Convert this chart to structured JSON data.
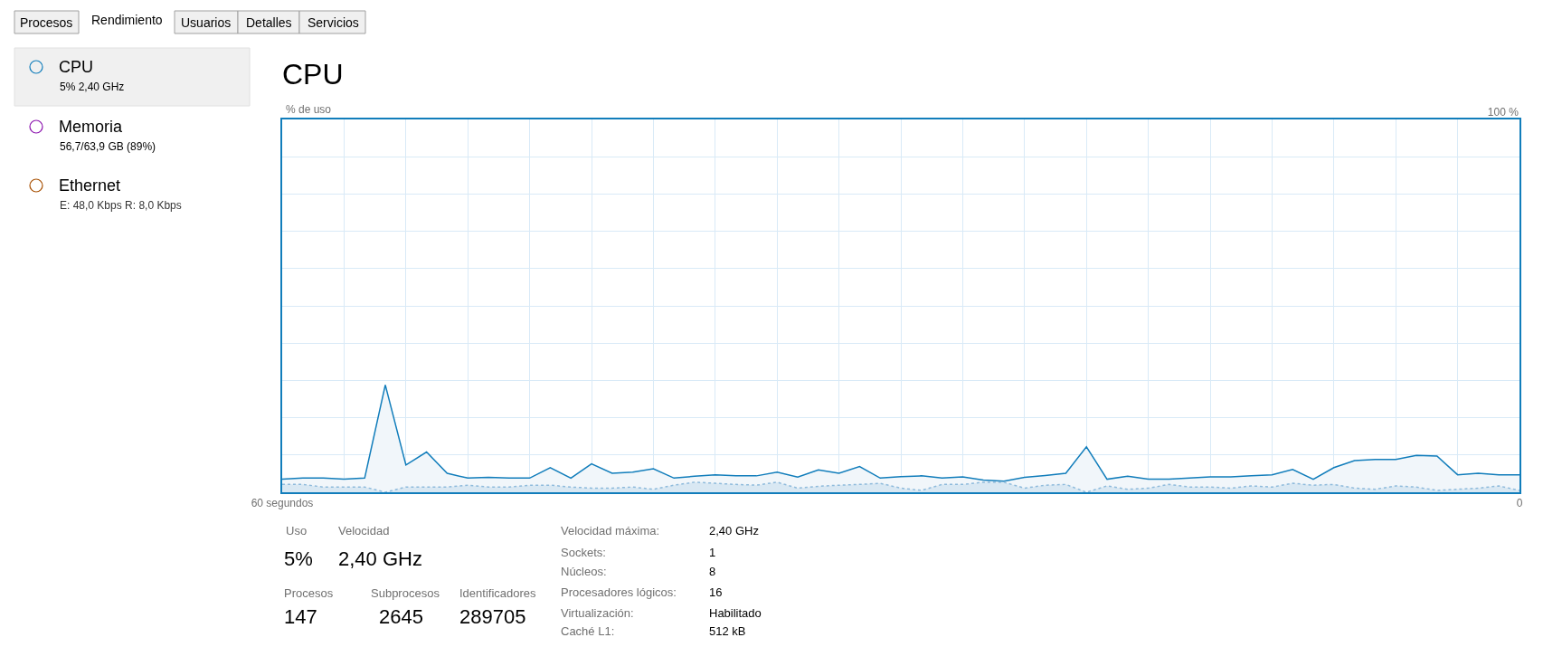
{
  "chart_data": {
    "type": "area",
    "title": "CPU",
    "ylabel": "% de uso",
    "x": [
      60,
      59,
      58,
      57,
      56,
      55,
      54,
      53,
      52,
      51,
      50,
      49,
      48,
      47,
      46,
      45,
      44,
      43,
      42,
      41,
      40,
      39,
      38,
      37,
      36,
      35,
      34,
      33,
      32,
      31,
      30,
      29,
      28,
      27,
      26,
      25,
      24,
      23,
      22,
      21,
      20,
      19,
      18,
      17,
      16,
      15,
      14,
      13,
      12,
      11,
      10,
      9,
      8,
      7,
      6,
      5,
      4,
      3,
      2,
      1,
      0
    ],
    "series": [
      {
        "color": "#117dbb",
        "line_style": "solid",
        "values": [
          3.5,
          3.8,
          3.8,
          3.5,
          3.8,
          28.8,
          7.3,
          10.8,
          5.1,
          3.8,
          4.0,
          3.8,
          3.8,
          6.6,
          3.8,
          7.6,
          5.1,
          5.4,
          6.3,
          3.8,
          4.3,
          4.7,
          4.4,
          4.4,
          5.4,
          4.1,
          6.0,
          5.1,
          6.9,
          3.8,
          4.2,
          4.4,
          3.8,
          4.1,
          3.3,
          3.0,
          4.0,
          4.5,
          5.1,
          12.2,
          3.5,
          4.3,
          3.5,
          3.5,
          3.8,
          4.1,
          4.1,
          4.4,
          4.7,
          6.1,
          3.5,
          6.6,
          8.5,
          8.8,
          8.8,
          9.9,
          9.7,
          4.7,
          5.1,
          4.7,
          4.7
        ]
      },
      {
        "color": "#8fbbdc",
        "line_style": "dotted",
        "values": [
          2.1,
          2.1,
          1.4,
          1.4,
          1.4,
          0,
          1.4,
          1.4,
          1.4,
          1.9,
          1.4,
          1.4,
          1.9,
          1.9,
          1.4,
          1.1,
          1.1,
          1.4,
          0.8,
          1.9,
          2.7,
          2.4,
          2.1,
          1.9,
          2.7,
          1.1,
          1.6,
          1.9,
          2.1,
          2.4,
          1.1,
          0.5,
          2.1,
          2.1,
          2.7,
          2.7,
          1.1,
          1.9,
          2.1,
          0,
          1.7,
          0.8,
          1.1,
          2.1,
          1.4,
          1.4,
          1.1,
          1.7,
          1.4,
          2.4,
          1.9,
          2.1,
          1.1,
          0.8,
          1.7,
          1.4,
          0.5,
          0.8,
          1.1,
          1.7,
          0.5
        ]
      }
    ],
    "xlim": [
      60,
      0
    ],
    "xticks": [
      {
        "value": 60,
        "label": "60 segundos"
      },
      {
        "value": 57,
        "label": null
      },
      {
        "value": 54,
        "label": null
      },
      {
        "value": 51,
        "label": null
      },
      {
        "value": 48,
        "label": null
      },
      {
        "value": 45,
        "label": null
      },
      {
        "value": 42,
        "label": null
      },
      {
        "value": 39,
        "label": null
      },
      {
        "value": 36,
        "label": null
      },
      {
        "value": 33,
        "label": null
      },
      {
        "value": 30,
        "label": null
      },
      {
        "value": 27,
        "label": null
      },
      {
        "value": 24,
        "label": null
      },
      {
        "value": 21,
        "label": null
      },
      {
        "value": 18,
        "label": null
      },
      {
        "value": 15,
        "label": null
      },
      {
        "value": 12,
        "label": null
      },
      {
        "value": 9,
        "label": null
      },
      {
        "value": 6,
        "label": null
      },
      {
        "value": 3,
        "label": null
      },
      {
        "value": 0,
        "label": "0"
      }
    ],
    "ylim": [
      0,
      100
    ],
    "yticks": [
      {
        "value": 0,
        "label": null
      },
      {
        "value": 10,
        "label": null
      },
      {
        "value": 20,
        "label": null
      },
      {
        "value": 30,
        "label": null
      },
      {
        "value": 40,
        "label": null
      },
      {
        "value": 50,
        "label": null
      },
      {
        "value": 60,
        "label": null
      },
      {
        "value": 70,
        "label": null
      },
      {
        "value": 80,
        "label": null
      },
      {
        "value": 90,
        "label": null
      },
      {
        "value": 100,
        "label": "100 %"
      }
    ],
    "grid": true,
    "marker": "none",
    "annotations": [
      "Procesos",
      "Rendimiento",
      "Usuarios",
      "Detalles",
      "Servicios",
      "CPU",
      "5% 2,40 GHz",
      "Memoria",
      "56,7/63,9 GB (89%)",
      "Ethernet",
      "E: 48,0 Kbps R: 8,0 Kbps",
      "Uso",
      "Velocidad",
      "5%",
      "2,40 GHz",
      "Procesos",
      "Subprocesos",
      "Identificadores",
      "147",
      "2645",
      "289705",
      "Velocidad máxima:",
      "Sockets:",
      "Núcleos:",
      "Procesadores lógicos:",
      "Virtualización:",
      "Caché L1:",
      "2,40 GHz",
      "1",
      "8",
      "16",
      "Habilitado",
      "512 kB"
    ]
  }
}
